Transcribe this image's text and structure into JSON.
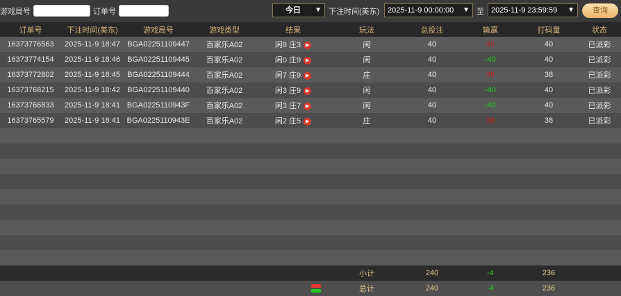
{
  "filters": {
    "game_round_label": "游戏局号",
    "game_round_value": "",
    "order_label": "订单号",
    "order_value": "",
    "period": "今日",
    "bet_time_label": "下注时间(美东)",
    "start": "2025-11-9 00:00:00",
    "to_label": "至",
    "end": "2025-11-9 23:59:59",
    "query_label": "查询"
  },
  "columns": [
    "订单号",
    "下注时间(美东)",
    "游戏局号",
    "游戏类型",
    "结果",
    "玩法",
    "总投注",
    "输赢",
    "打码量",
    "状态"
  ],
  "rows": [
    {
      "order": "16373776563",
      "time": "2025-11-9 18:47",
      "round": "BGA02251109447",
      "type": "百家乐A02",
      "result": "闲8 庄3",
      "play": "闲",
      "bet": "40",
      "win": "40",
      "win_color": "red",
      "code": "40",
      "status": "已派彩"
    },
    {
      "order": "16373774154",
      "time": "2025-11-9 18:46",
      "round": "BGA02251109445",
      "type": "百家乐A02",
      "result": "闲0 庄9",
      "play": "闲",
      "bet": "40",
      "win": "-40",
      "win_color": "green",
      "code": "40",
      "status": "已派彩"
    },
    {
      "order": "16373772802",
      "time": "2025-11-9 18:45",
      "round": "BGA02251109444",
      "type": "百家乐A02",
      "result": "闲7 庄9",
      "play": "庄",
      "bet": "40",
      "win": "38",
      "win_color": "red",
      "code": "38",
      "status": "已派彩"
    },
    {
      "order": "16373768215",
      "time": "2025-11-9 18:42",
      "round": "BGA02251109440",
      "type": "百家乐A02",
      "result": "闲3 庄9",
      "play": "闲",
      "bet": "40",
      "win": "-40",
      "win_color": "green",
      "code": "40",
      "status": "已派彩"
    },
    {
      "order": "16373766833",
      "time": "2025-11-9 18:41",
      "round": "BGA0225110943F",
      "type": "百家乐A02",
      "result": "闲3 庄7",
      "play": "闲",
      "bet": "40",
      "win": "-40",
      "win_color": "green",
      "code": "40",
      "status": "已派彩"
    },
    {
      "order": "16373765579",
      "time": "2025-11-9 18:41",
      "round": "BGA0225110943E",
      "type": "百家乐A02",
      "result": "闲2 庄5",
      "play": "庄",
      "bet": "40",
      "win": "38",
      "win_color": "red",
      "code": "38",
      "status": "已派彩"
    }
  ],
  "subtotal": {
    "label": "小计",
    "bet": "240",
    "win": "-4",
    "code": "236"
  },
  "total": {
    "label": "总计",
    "bet": "240",
    "win": "-4",
    "code": "236"
  },
  "colors": {
    "header_text": "#d7b37a",
    "win_positive": "#c02020",
    "win_negative": "#22cc22"
  }
}
